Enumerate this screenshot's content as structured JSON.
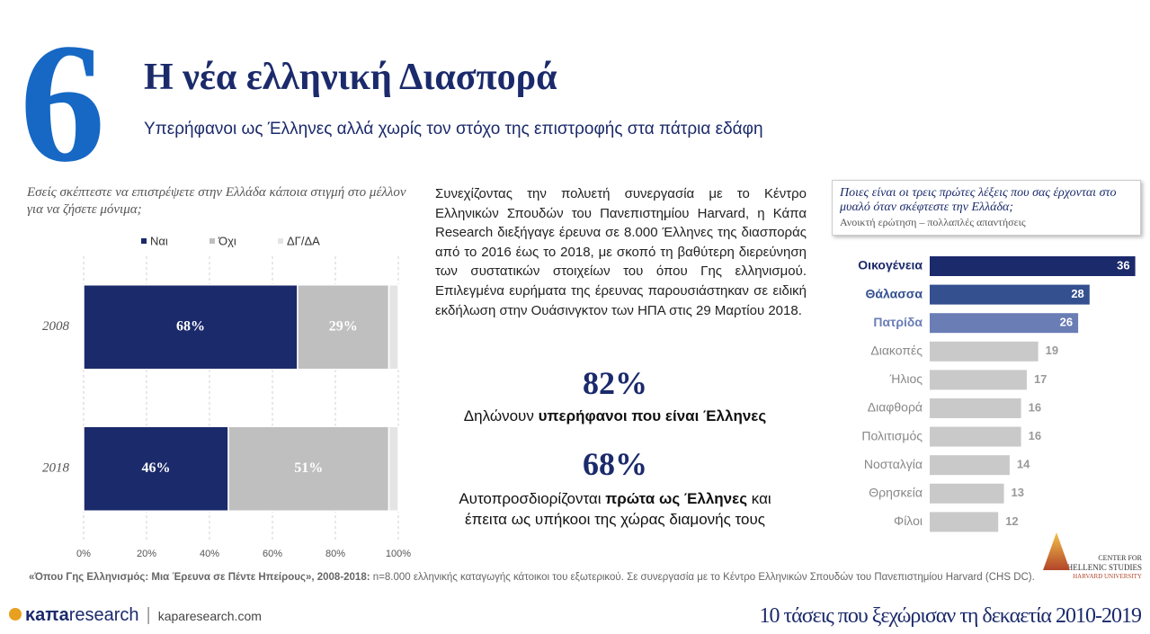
{
  "header": {
    "number": "6",
    "title": "Η νέα ελληνική Διασπορά",
    "subtitle": "Υπερήφανοι ως Έλληνες αλλά χωρίς τον στόχο της επιστροφής στα πάτρια εδάφη"
  },
  "chart_data": [
    {
      "type": "stacked-bar",
      "orientation": "horizontal",
      "title": "Εσείς σκέπτεστε να επιστρέψετε στην Ελλάδα κάποια στιγμή στο μέλλον για να ζήσετε μόνιμα;",
      "categories": [
        "2008",
        "2018"
      ],
      "series": [
        {
          "name": "Ναι",
          "color": "#1b2a6b",
          "values": [
            68,
            46
          ],
          "value_labels": [
            "68%",
            "46%"
          ]
        },
        {
          "name": "Όχι",
          "color": "#bfbfbf",
          "values": [
            29,
            51
          ],
          "value_labels": [
            "29%",
            "51%"
          ]
        },
        {
          "name": "ΔΓ/ΔΑ",
          "color": "#e4e4e4",
          "values": [
            3,
            3
          ]
        }
      ],
      "xlim": [
        0,
        100
      ],
      "xticks": [
        {
          "value": 0,
          "label": "0%"
        },
        {
          "value": 20,
          "label": "20%"
        },
        {
          "value": 40,
          "label": "40%"
        },
        {
          "value": 60,
          "label": "60%"
        },
        {
          "value": 80,
          "label": "80%"
        },
        {
          "value": 100,
          "label": "100%"
        }
      ],
      "grid": true,
      "legend": "top"
    },
    {
      "type": "bar",
      "orientation": "horizontal",
      "title": "Ποιες είναι οι τρεις πρώτες λέξεις που σας έρχονται στο μυαλό όταν σκέφτεστε την Ελλάδα;",
      "subtitle": "Ανοικτή ερώτηση – πολλαπλές απαντήσεις",
      "categories": [
        "Οικογένεια",
        "Θάλασσα",
        "Πατρίδα",
        "Διακοπές",
        "Ήλιος",
        "Διαφθορά",
        "Πολιτισμός",
        "Νοσταλγία",
        "Θρησκεία",
        "Φίλοι"
      ],
      "values": [
        36,
        28,
        26,
        19,
        17,
        16,
        16,
        14,
        13,
        12
      ],
      "colors": [
        "#1b2a6b",
        "#34508f",
        "#6a7db5",
        "#c9c9c9",
        "#c9c9c9",
        "#c9c9c9",
        "#c9c9c9",
        "#c9c9c9",
        "#c9c9c9",
        "#c9c9c9"
      ]
    }
  ],
  "text": {
    "paragraph": "Συνεχίζοντας την πολυετή συνεργασία με το Κέντρο Ελληνικών Σπουδών του Πανεπιστημίου Harvard, η Κάπα Research διεξήγαγε έρευνα σε 8.000 Έλληνες της διασποράς από το 2016 έως το 2018, με σκοπό τη βαθύτερη διερεύνηση των συστατικών στοιχείων του όπου Γης ελληνισμού. Επιλεγμένα ευρήματα της έρευνας παρουσιάστηκαν σε ειδική εκδήλωση στην Ουάσινγκτον των ΗΠΑ στις 29 Μαρτίου 2018.",
    "stats": [
      {
        "value": "82%",
        "before": "Δηλώνουν ",
        "bold": "υπερήφανοι που είναι Έλληνες",
        "after": ""
      },
      {
        "value": "68%",
        "before": "Αυτοπροσδιορίζονται ",
        "bold": "πρώτα ως Έλληνες",
        "after": " και έπειτα ως υπήκοοι της χώρας διαμονής τους"
      }
    ]
  },
  "footer": {
    "source_bold": "«Όπου Γης Ελληνισμός: Μια Έρευνα σε Πέντε Ηπείρους», 2008-2018:",
    "source": " n=8.000 ελληνικής καταγωγής κάτοικοι του εξωτερικού. Σε συνεργασία με το Κέντρο Ελληνικών Σπουδών του Πανεπιστημίου Harvard (CHS DC).",
    "logo_kapa": "κaπa",
    "logo_research": "research",
    "website": "kaparesearch.com",
    "chs_top": "CENTER FOR",
    "chs_mid": "HELLENIC STUDIES",
    "chs_bottom": "HARVARD UNIVERSITY",
    "tagline": "10 τάσεις που ξεχώρισαν τη δεκαετία 2010-2019"
  }
}
